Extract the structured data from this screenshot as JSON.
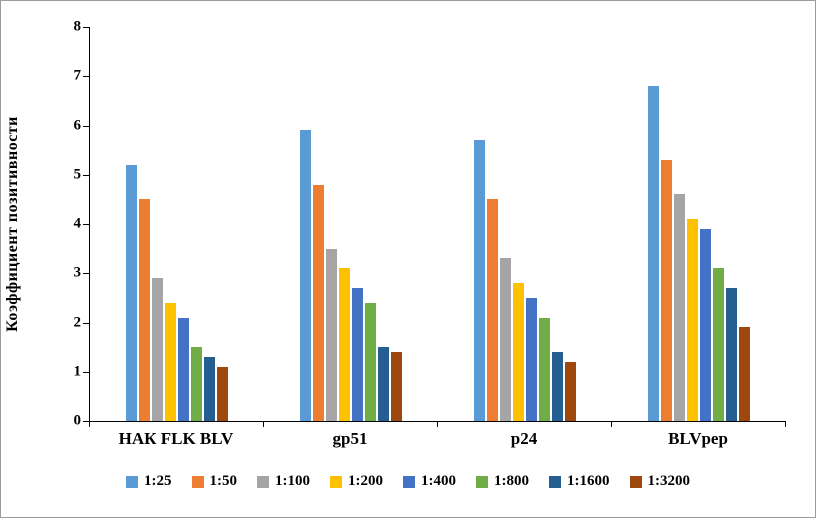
{
  "figure": {
    "background": "#ffffff",
    "border_color": "#9b9b9b"
  },
  "chart_data": {
    "type": "bar",
    "title": "",
    "xlabel": "",
    "ylabel": "Коэффициент позитивности",
    "ylim": [
      0,
      8
    ],
    "ytick_step": 1,
    "yticks": [
      0,
      1,
      2,
      3,
      4,
      5,
      6,
      7,
      8
    ],
    "grid": false,
    "legend_position": "bottom",
    "categories": [
      "НАК FLK BLV",
      "gp51",
      "p24",
      "BLVpep"
    ],
    "series": [
      {
        "name": "1:25",
        "color": "#5B9BD5",
        "values": [
          5.2,
          5.9,
          5.7,
          6.8
        ]
      },
      {
        "name": "1:50",
        "color": "#ED7D31",
        "values": [
          4.5,
          4.8,
          4.5,
          5.3
        ]
      },
      {
        "name": "1:100",
        "color": "#A5A5A5",
        "values": [
          2.9,
          3.5,
          3.3,
          4.6
        ]
      },
      {
        "name": "1:200",
        "color": "#FFC000",
        "values": [
          2.4,
          3.1,
          2.8,
          4.1
        ]
      },
      {
        "name": "1:400",
        "color": "#4472C4",
        "values": [
          2.1,
          2.7,
          2.5,
          3.9
        ]
      },
      {
        "name": "1:800",
        "color": "#70AD47",
        "values": [
          1.5,
          2.4,
          2.1,
          3.1
        ]
      },
      {
        "name": "1:1600",
        "color": "#255E91",
        "values": [
          1.3,
          1.5,
          1.4,
          2.7
        ]
      },
      {
        "name": "1:3200",
        "color": "#9E480E",
        "values": [
          1.1,
          1.4,
          1.2,
          1.9
        ]
      }
    ]
  }
}
